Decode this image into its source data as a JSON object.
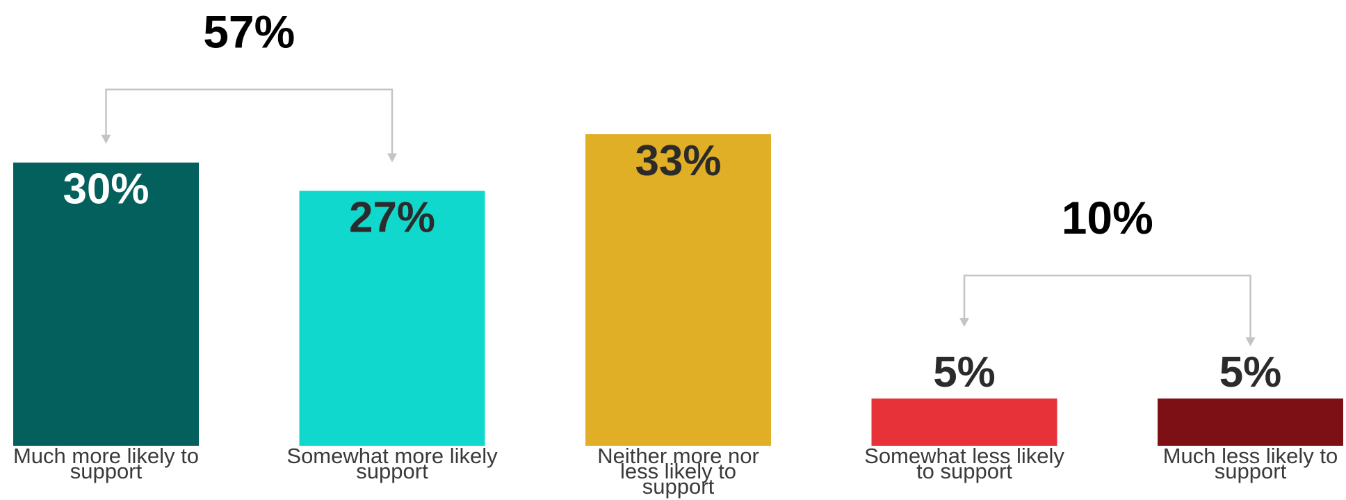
{
  "chart_data": {
    "type": "bar",
    "categories": [
      [
        "Much more likely to",
        "support"
      ],
      [
        "Somewhat more likely",
        "support"
      ],
      [
        "Neither more nor",
        "less likely to",
        "support"
      ],
      [
        "Somewhat less likely",
        "to support"
      ],
      [
        "Much less likely to",
        "support"
      ]
    ],
    "values": [
      30,
      27,
      33,
      5,
      5
    ],
    "value_labels": [
      "30%",
      "27%",
      "33%",
      "5%",
      "5%"
    ],
    "colors": [
      "#03605D",
      "#10D8CC",
      "#E1AF25",
      "#E8323A",
      "#7C1014"
    ],
    "label_colors": [
      "#ffffff",
      "#2b2b2b",
      "#2b2b2b",
      "#2b2b2b",
      "#2b2b2b"
    ],
    "group_totals": [
      {
        "label": "57%",
        "value": 57,
        "bars": [
          0,
          1
        ]
      },
      {
        "label": "10%",
        "value": 10,
        "bars": [
          3,
          4
        ]
      }
    ],
    "ylim": [
      0,
      33
    ],
    "grid": false,
    "title": "",
    "xlabel": "",
    "ylabel": ""
  }
}
